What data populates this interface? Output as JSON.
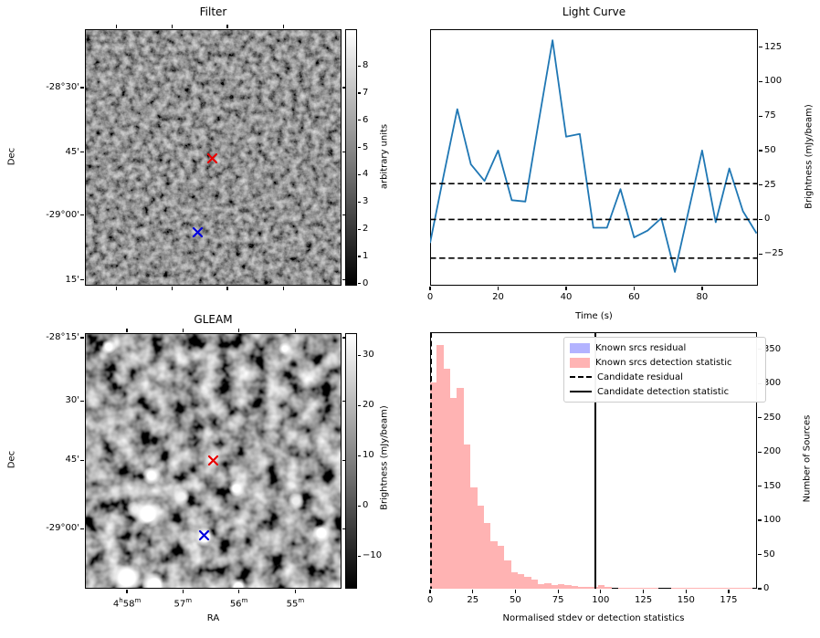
{
  "figure": {
    "background": "#ffffff",
    "line_color": "#1f77b4",
    "hist_fill": "#ffb3b3",
    "residual_fill": "#b3b3ff",
    "candidate_marker_color": "#e80000",
    "reference_marker_color": "#0000dd"
  },
  "chart_data": [
    {
      "type": "heatmap",
      "panel": "filter",
      "title": "Filter",
      "ylabel": "Dec",
      "colormap": "greys (black=0, white=8)",
      "yticks": [
        {
          "label": "-28°30'",
          "f": 0.228
        },
        {
          "label": "45'",
          "f": 0.479
        },
        {
          "label": "-29°00'",
          "f": 0.725
        },
        {
          "label": "15'",
          "f": 0.977
        }
      ],
      "xticks": [
        {
          "label": "",
          "f": 0.123
        },
        {
          "label": "",
          "f": 0.339
        },
        {
          "label": "",
          "f": 0.555
        },
        {
          "label": "",
          "f": 0.773
        }
      ],
      "colorbar": {
        "label": "arbitrary units",
        "range": [
          0,
          8
        ],
        "ticks": [
          {
            "label": "8",
            "f": 0.143
          },
          {
            "label": "7",
            "f": 0.249
          },
          {
            "label": "6",
            "f": 0.355
          },
          {
            "label": "5",
            "f": 0.461
          },
          {
            "label": "4",
            "f": 0.567
          },
          {
            "label": "3",
            "f": 0.674
          },
          {
            "label": "2",
            "f": 0.78
          },
          {
            "label": "1",
            "f": 0.886
          },
          {
            "label": "0",
            "f": 0.992
          }
        ]
      },
      "markers": [
        {
          "name": "candidate-cross",
          "color": "#e80000",
          "fx": 0.497,
          "fy": 0.503
        },
        {
          "name": "reference-cross",
          "color": "#0000dd",
          "fx": 0.441,
          "fy": 0.791
        }
      ]
    },
    {
      "type": "line",
      "panel": "light_curve",
      "title": "Light Curve",
      "xlabel": "Time (s)",
      "ylabel": "Brightness (mJy/beam)",
      "x": [
        0,
        4,
        8,
        12,
        16,
        20,
        24,
        28,
        32,
        36,
        40,
        44,
        48,
        52,
        56,
        60,
        64,
        68,
        72,
        76,
        80,
        84,
        88,
        92,
        96
      ],
      "y": [
        -17,
        32,
        80,
        40,
        28,
        50,
        14,
        13,
        72,
        130,
        60,
        62,
        -6,
        -6,
        22,
        -13,
        -8,
        1,
        -38,
        6,
        50,
        -2,
        37,
        6,
        -10
      ],
      "xlim": [
        0,
        96.4
      ],
      "ylim": [
        -48,
        138
      ],
      "xticks": [
        0,
        20,
        40,
        60,
        80
      ],
      "yticks": [
        -25,
        0,
        25,
        50,
        75,
        100,
        125
      ],
      "hlines": [
        26,
        0,
        -28
      ],
      "hline_style": "dashed",
      "line_color": "#1f77b4",
      "legend_position": "none",
      "grid": false
    },
    {
      "type": "heatmap",
      "panel": "gleam",
      "title": "GLEAM",
      "xlabel": "RA",
      "ylabel": "Dec",
      "colormap": "greys (black=-15, white=34)",
      "yticks": [
        {
          "label": "-28°15'",
          "f": 0.018
        },
        {
          "label": "30'",
          "f": 0.265
        },
        {
          "label": "45'",
          "f": 0.498
        },
        {
          "label": "-29°00'",
          "f": 0.765
        }
      ],
      "xticks": [
        {
          "label": "4h58m",
          "f": 0.164
        },
        {
          "label": "57m",
          "f": 0.382
        },
        {
          "label": "56m",
          "f": 0.6
        },
        {
          "label": "55m",
          "f": 0.82
        }
      ],
      "colorbar": {
        "label": "Brightness (mJy/beam)",
        "range": [
          -15,
          34
        ],
        "ticks": [
          {
            "label": "30",
            "f": 0.087
          },
          {
            "label": "20",
            "f": 0.283
          },
          {
            "label": "10",
            "f": 0.48
          },
          {
            "label": "0",
            "f": 0.676
          },
          {
            "label": "−10",
            "f": 0.873
          }
        ]
      },
      "markers": [
        {
          "name": "candidate-cross",
          "color": "#e80000",
          "fx": 0.501,
          "fy": 0.4975
        },
        {
          "name": "reference-cross",
          "color": "#0000dd",
          "fx": 0.463,
          "fy": 0.792
        }
      ]
    },
    {
      "type": "bar",
      "panel": "histogram",
      "xlabel": "Normalised stdev or detection statistics",
      "ylabel": "Number of Sources",
      "bin_start": 0,
      "bin_width": 3.93,
      "values": [
        302,
        356,
        322,
        279,
        294,
        211,
        148,
        122,
        96,
        69,
        63,
        41,
        24,
        22,
        17,
        14,
        7,
        8,
        5,
        7,
        5,
        4,
        3,
        3,
        3,
        5,
        3,
        0,
        1,
        2,
        1,
        2,
        2,
        1,
        0,
        0,
        1,
        1,
        2,
        1,
        1,
        2,
        1,
        1,
        2,
        2,
        1,
        2
      ],
      "bar_color": "#ffb3b3",
      "xlim": [
        0,
        191.6
      ],
      "ylim": [
        0,
        375
      ],
      "xticks": [
        0,
        25,
        50,
        75,
        100,
        125,
        150,
        175
      ],
      "yticks": [
        0,
        50,
        100,
        150,
        200,
        250,
        300,
        350
      ],
      "vlines": [
        {
          "x": 0.5,
          "style": "dashed",
          "label": "Candidate residual"
        },
        {
          "x": 97,
          "style": "solid",
          "label": "Candidate detection statistic"
        }
      ],
      "legend": {
        "position": "upper-center-right",
        "items": [
          {
            "label": "Known srcs residual",
            "swatch": "#b3b3ff",
            "kind": "patch"
          },
          {
            "label": "Known srcs detection statistic",
            "swatch": "#ffb3b3",
            "kind": "patch"
          },
          {
            "label": "Candidate residual",
            "kind": "dashed-line"
          },
          {
            "label": "Candidate detection statistic",
            "kind": "solid-line"
          }
        ]
      }
    }
  ]
}
